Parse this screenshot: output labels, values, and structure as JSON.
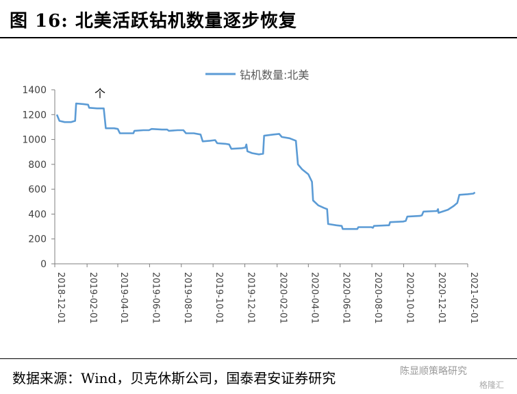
{
  "header": {
    "title": "图 16: 北美活跃钻机数量逐步恢复"
  },
  "footer": {
    "source": "数据来源：Wind，贝克休斯公司，国泰君安证券研究",
    "watermark": "陈显顺策略研究",
    "watermark2": "格隆汇"
  },
  "annotation": "个",
  "colors": {
    "line": "#5B9BD5",
    "axis": "#7f7f7f"
  },
  "chart_data": {
    "type": "line",
    "title": "",
    "xlabel": "",
    "ylabel": "",
    "ylim": [
      0,
      1400
    ],
    "y_ticks": [
      0,
      200,
      400,
      600,
      800,
      1000,
      1200,
      1400
    ],
    "x_ticks": [
      "2018-12-01",
      "2019-02-01",
      "2019-04-01",
      "2019-06-01",
      "2019-08-01",
      "2019-10-01",
      "2019-12-01",
      "2020-02-01",
      "2020-04-01",
      "2020-06-01",
      "2020-08-01",
      "2020-10-01",
      "2020-12-01",
      "2021-02-01"
    ],
    "legend": "top-center",
    "grid": false,
    "series": [
      {
        "name": "钻机数量:北美",
        "points": [
          [
            "2018-12-05",
            1200
          ],
          [
            "2018-12-10",
            1150
          ],
          [
            "2018-12-20",
            1140
          ],
          [
            "2019-01-01",
            1140
          ],
          [
            "2019-01-09",
            1150
          ],
          [
            "2019-01-11",
            1290
          ],
          [
            "2019-01-25",
            1285
          ],
          [
            "2019-02-03",
            1280
          ],
          [
            "2019-02-05",
            1255
          ],
          [
            "2019-02-20",
            1250
          ],
          [
            "2019-03-05",
            1250
          ],
          [
            "2019-03-09",
            1090
          ],
          [
            "2019-03-25",
            1090
          ],
          [
            "2019-04-01",
            1085
          ],
          [
            "2019-04-05",
            1050
          ],
          [
            "2019-04-20",
            1050
          ],
          [
            "2019-05-01",
            1050
          ],
          [
            "2019-05-03",
            1070
          ],
          [
            "2019-05-20",
            1075
          ],
          [
            "2019-05-31",
            1075
          ],
          [
            "2019-06-05",
            1085
          ],
          [
            "2019-06-25",
            1080
          ],
          [
            "2019-07-05",
            1080
          ],
          [
            "2019-07-08",
            1070
          ],
          [
            "2019-07-25",
            1075
          ],
          [
            "2019-08-05",
            1075
          ],
          [
            "2019-08-10",
            1050
          ],
          [
            "2019-08-25",
            1050
          ],
          [
            "2019-09-07",
            1040
          ],
          [
            "2019-09-11",
            985
          ],
          [
            "2019-09-25",
            990
          ],
          [
            "2019-10-05",
            995
          ],
          [
            "2019-10-09",
            970
          ],
          [
            "2019-10-25",
            965
          ],
          [
            "2019-11-01",
            960
          ],
          [
            "2019-11-05",
            925
          ],
          [
            "2019-11-25",
            930
          ],
          [
            "2019-12-02",
            935
          ],
          [
            "2019-12-04",
            960
          ],
          [
            "2019-12-06",
            905
          ],
          [
            "2019-12-15",
            890
          ],
          [
            "2019-12-28",
            880
          ],
          [
            "2020-01-05",
            885
          ],
          [
            "2020-01-07",
            1030
          ],
          [
            "2020-01-25",
            1040
          ],
          [
            "2020-02-05",
            1045
          ],
          [
            "2020-02-10",
            1020
          ],
          [
            "2020-02-25",
            1010
          ],
          [
            "2020-03-08",
            990
          ],
          [
            "2020-03-12",
            800
          ],
          [
            "2020-03-20",
            760
          ],
          [
            "2020-04-01",
            720
          ],
          [
            "2020-04-08",
            660
          ],
          [
            "2020-04-10",
            510
          ],
          [
            "2020-04-20",
            470
          ],
          [
            "2020-05-01",
            450
          ],
          [
            "2020-05-07",
            440
          ],
          [
            "2020-05-09",
            320
          ],
          [
            "2020-05-25",
            310
          ],
          [
            "2020-06-04",
            305
          ],
          [
            "2020-06-06",
            280
          ],
          [
            "2020-06-30",
            280
          ],
          [
            "2020-07-04",
            280
          ],
          [
            "2020-07-06",
            295
          ],
          [
            "2020-07-31",
            295
          ],
          [
            "2020-08-03",
            290
          ],
          [
            "2020-08-05",
            305
          ],
          [
            "2020-08-31",
            310
          ],
          [
            "2020-09-03",
            310
          ],
          [
            "2020-09-05",
            335
          ],
          [
            "2020-09-30",
            340
          ],
          [
            "2020-10-05",
            345
          ],
          [
            "2020-10-08",
            380
          ],
          [
            "2020-11-01",
            385
          ],
          [
            "2020-11-05",
            390
          ],
          [
            "2020-11-08",
            420
          ],
          [
            "2020-12-04",
            425
          ],
          [
            "2020-12-06",
            440
          ],
          [
            "2020-12-07",
            410
          ],
          [
            "2020-12-25",
            435
          ],
          [
            "2021-01-05",
            465
          ],
          [
            "2021-01-12",
            490
          ],
          [
            "2021-01-16",
            555
          ],
          [
            "2021-02-01",
            560
          ],
          [
            "2021-02-12",
            565
          ],
          [
            "2021-02-15",
            575
          ]
        ]
      }
    ]
  }
}
